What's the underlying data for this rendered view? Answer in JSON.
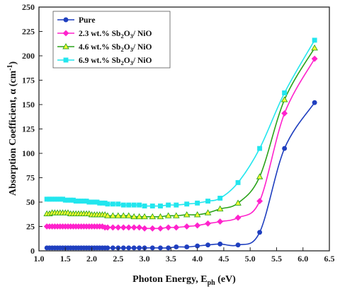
{
  "chart_data": {
    "type": "line",
    "xlabel": {
      "main": "Photon Energy, E",
      "sub": "ph",
      "tail": " (eV)"
    },
    "ylabel": {
      "main": "Absorption Coefficient, α (cm",
      "sup": "-1",
      "tail": ")"
    },
    "xlim": [
      1.0,
      6.5
    ],
    "ylim": [
      0,
      250
    ],
    "xticks": [
      "1.0",
      "1.5",
      "2.0",
      "2.5",
      "3.0",
      "3.5",
      "4.0",
      "4.5",
      "5.0",
      "5.5",
      "6.0",
      "6.5"
    ],
    "yticks": [
      "0",
      "25",
      "50",
      "75",
      "100",
      "125",
      "150",
      "175",
      "200",
      "225",
      "250"
    ],
    "legend_position": "top-left",
    "series": [
      {
        "name": "Pure",
        "legend": {
          "main": "Pure"
        },
        "color": "#1f3fbf",
        "marker": "circle",
        "dense_points": [
          [
            1.15,
            3
          ],
          [
            1.2,
            3
          ],
          [
            1.25,
            3
          ],
          [
            1.3,
            3
          ],
          [
            1.35,
            3
          ],
          [
            1.4,
            3
          ],
          [
            1.45,
            3
          ],
          [
            1.5,
            3
          ],
          [
            1.55,
            3
          ],
          [
            1.6,
            3
          ],
          [
            1.65,
            3
          ],
          [
            1.7,
            3
          ],
          [
            1.75,
            3
          ],
          [
            1.8,
            3
          ],
          [
            1.85,
            3
          ],
          [
            1.9,
            3
          ],
          [
            1.95,
            3
          ],
          [
            2.0,
            3
          ],
          [
            2.05,
            3
          ],
          [
            2.1,
            3
          ],
          [
            2.15,
            3
          ],
          [
            2.2,
            3
          ],
          [
            2.25,
            3
          ],
          [
            2.3,
            3
          ],
          [
            2.4,
            3
          ],
          [
            2.5,
            3
          ],
          [
            2.6,
            3
          ],
          [
            2.7,
            3
          ],
          [
            2.8,
            3
          ],
          [
            2.9,
            3
          ],
          [
            3.0,
            3
          ],
          [
            3.15,
            3
          ],
          [
            3.3,
            3
          ],
          [
            3.45,
            3
          ],
          [
            3.6,
            4
          ],
          [
            3.8,
            4
          ],
          [
            4.0,
            5
          ],
          [
            4.2,
            6
          ],
          [
            4.43,
            7
          ],
          [
            4.77,
            6
          ],
          [
            5.18,
            19
          ],
          [
            5.65,
            105
          ],
          [
            6.22,
            152
          ]
        ]
      },
      {
        "name": "2.3 wt.% Sb2O3/ NiO",
        "legend": {
          "main": "2.3 wt.% Sb",
          "sub1": "2",
          "mid": "O",
          "sub2": "3",
          "tail": "/ NiO"
        },
        "color": "#ff22cc",
        "marker": "diamond",
        "dense_points": [
          [
            1.15,
            25
          ],
          [
            1.2,
            25
          ],
          [
            1.25,
            25
          ],
          [
            1.3,
            25
          ],
          [
            1.35,
            25
          ],
          [
            1.4,
            25
          ],
          [
            1.45,
            25
          ],
          [
            1.5,
            25
          ],
          [
            1.55,
            25
          ],
          [
            1.6,
            25
          ],
          [
            1.65,
            25
          ],
          [
            1.7,
            25
          ],
          [
            1.75,
            25
          ],
          [
            1.8,
            25
          ],
          [
            1.85,
            25
          ],
          [
            1.9,
            25
          ],
          [
            1.95,
            25
          ],
          [
            2.0,
            25
          ],
          [
            2.05,
            25
          ],
          [
            2.1,
            25
          ],
          [
            2.15,
            25
          ],
          [
            2.2,
            25
          ],
          [
            2.25,
            24
          ],
          [
            2.3,
            24
          ],
          [
            2.4,
            24
          ],
          [
            2.5,
            24
          ],
          [
            2.6,
            24
          ],
          [
            2.7,
            24
          ],
          [
            2.8,
            24
          ],
          [
            2.9,
            24
          ],
          [
            3.0,
            23
          ],
          [
            3.15,
            23
          ],
          [
            3.3,
            23
          ],
          [
            3.45,
            24
          ],
          [
            3.6,
            24
          ],
          [
            3.8,
            25
          ],
          [
            4.0,
            26
          ],
          [
            4.2,
            28
          ],
          [
            4.43,
            30
          ],
          [
            4.77,
            34
          ],
          [
            5.18,
            51
          ],
          [
            5.65,
            141
          ],
          [
            6.22,
            197
          ]
        ]
      },
      {
        "name": "4.6 wt.% Sb2O3/ NiO",
        "legend": {
          "main": "4.6 wt.% Sb",
          "sub1": "2",
          "mid": "O",
          "sub2": "3",
          "tail": "/ NiO"
        },
        "color": "#2aa31a",
        "marker": "triangle",
        "marker_fill": "#ffff33",
        "dense_points": [
          [
            1.15,
            38
          ],
          [
            1.2,
            38
          ],
          [
            1.25,
            39
          ],
          [
            1.3,
            39
          ],
          [
            1.35,
            39
          ],
          [
            1.4,
            39
          ],
          [
            1.45,
            39
          ],
          [
            1.5,
            39
          ],
          [
            1.55,
            39
          ],
          [
            1.6,
            38
          ],
          [
            1.65,
            38
          ],
          [
            1.7,
            38
          ],
          [
            1.75,
            38
          ],
          [
            1.8,
            38
          ],
          [
            1.85,
            38
          ],
          [
            1.9,
            38
          ],
          [
            1.95,
            38
          ],
          [
            2.0,
            37
          ],
          [
            2.05,
            37
          ],
          [
            2.1,
            37
          ],
          [
            2.15,
            37
          ],
          [
            2.2,
            37
          ],
          [
            2.25,
            37
          ],
          [
            2.3,
            36
          ],
          [
            2.4,
            36
          ],
          [
            2.5,
            36
          ],
          [
            2.6,
            36
          ],
          [
            2.7,
            36
          ],
          [
            2.8,
            35
          ],
          [
            2.9,
            35
          ],
          [
            3.0,
            35
          ],
          [
            3.15,
            35
          ],
          [
            3.3,
            35
          ],
          [
            3.45,
            36
          ],
          [
            3.6,
            36
          ],
          [
            3.8,
            37
          ],
          [
            4.0,
            37
          ],
          [
            4.2,
            39
          ],
          [
            4.43,
            43
          ],
          [
            4.77,
            49
          ],
          [
            5.18,
            76
          ],
          [
            5.65,
            155
          ],
          [
            6.22,
            208
          ]
        ]
      },
      {
        "name": "6.9 wt.% Sb2O3/ NiO",
        "legend": {
          "main": "6.9 wt.% Sb",
          "sub1": "2",
          "mid": "O",
          "sub2": "3",
          "tail": "/ NiO"
        },
        "color": "#22e6ee",
        "marker": "square",
        "dense_points": [
          [
            1.15,
            53
          ],
          [
            1.2,
            53
          ],
          [
            1.25,
            53
          ],
          [
            1.3,
            53
          ],
          [
            1.35,
            53
          ],
          [
            1.4,
            53
          ],
          [
            1.45,
            53
          ],
          [
            1.5,
            52
          ],
          [
            1.55,
            52
          ],
          [
            1.6,
            52
          ],
          [
            1.65,
            52
          ],
          [
            1.7,
            51
          ],
          [
            1.75,
            51
          ],
          [
            1.8,
            51
          ],
          [
            1.85,
            51
          ],
          [
            1.9,
            51
          ],
          [
            1.95,
            50
          ],
          [
            2.0,
            50
          ],
          [
            2.05,
            50
          ],
          [
            2.1,
            50
          ],
          [
            2.15,
            49
          ],
          [
            2.2,
            49
          ],
          [
            2.25,
            49
          ],
          [
            2.3,
            48
          ],
          [
            2.4,
            48
          ],
          [
            2.5,
            48
          ],
          [
            2.6,
            47
          ],
          [
            2.7,
            47
          ],
          [
            2.8,
            47
          ],
          [
            2.9,
            47
          ],
          [
            3.0,
            46
          ],
          [
            3.15,
            46
          ],
          [
            3.3,
            46
          ],
          [
            3.45,
            47
          ],
          [
            3.6,
            47
          ],
          [
            3.8,
            48
          ],
          [
            4.0,
            49
          ],
          [
            4.2,
            51
          ],
          [
            4.43,
            54
          ],
          [
            4.77,
            70
          ],
          [
            5.18,
            105
          ],
          [
            5.65,
            162
          ],
          [
            6.22,
            216
          ]
        ]
      }
    ]
  }
}
